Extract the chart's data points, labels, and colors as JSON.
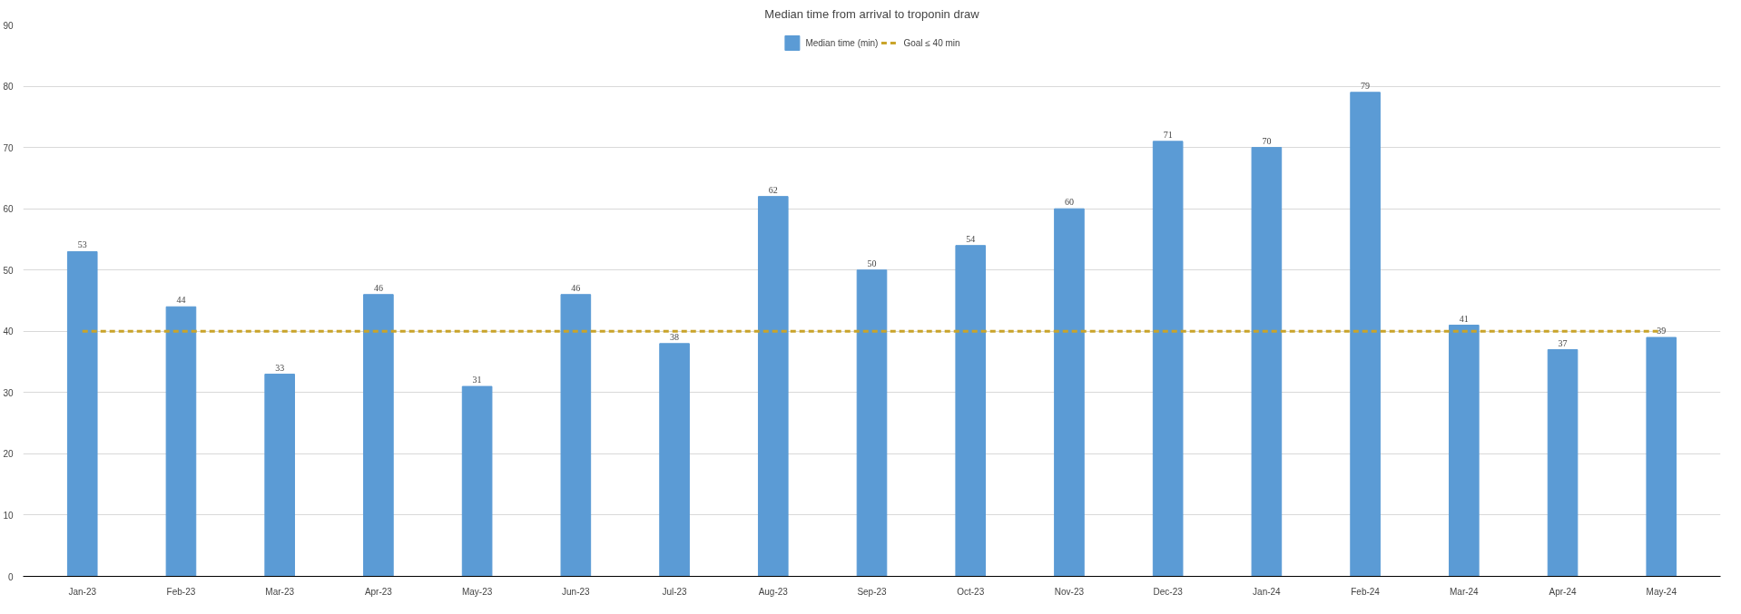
{
  "chart_data": {
    "type": "bar",
    "title": "Median time from arrival to troponin draw",
    "categories": [
      "Jan-23",
      "Feb-23",
      "Mar-23",
      "Apr-23",
      "May-23",
      "Jun-23",
      "Jul-23",
      "Aug-23",
      "Sep-23",
      "Oct-23",
      "Nov-23",
      "Dec-23",
      "Jan-24",
      "Feb-24",
      "Mar-24",
      "Apr-24",
      "May-24"
    ],
    "series": [
      {
        "name": "Median time (min)",
        "color": "#5b9bd5",
        "values": [
          53,
          44,
          33,
          46,
          31,
          46,
          38,
          62,
          50,
          54,
          60,
          71,
          70,
          79,
          41,
          37,
          39
        ],
        "data_labels": true
      },
      {
        "name": "Goal ≤ 40 min",
        "type": "line",
        "line_style": "dashed",
        "color": "#c9a42a",
        "values": [
          40,
          40,
          40,
          40,
          40,
          40,
          40,
          40,
          40,
          40,
          40,
          40,
          40,
          40,
          40,
          40,
          40
        ]
      }
    ],
    "ylim": [
      0,
      90
    ],
    "yticks": [
      0,
      10,
      20,
      30,
      40,
      50,
      60,
      70,
      80,
      90
    ],
    "grid": "y",
    "legend": "top"
  }
}
